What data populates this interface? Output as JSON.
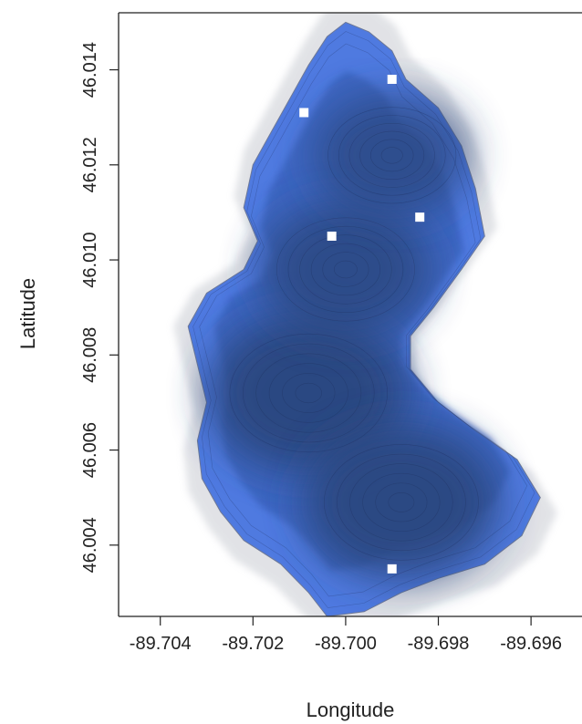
{
  "chart_data": {
    "type": "heatmap",
    "title": "",
    "xlabel": "Longitude",
    "ylabel": "Latitude",
    "xlim": [
      -89.7049,
      -89.6949
    ],
    "ylim": [
      46.0025,
      46.0152
    ],
    "xticks": [
      {
        "value": -89.704,
        "label": "-89.704"
      },
      {
        "value": -89.702,
        "label": "-89.702"
      },
      {
        "value": -89.7,
        "label": "-89.700"
      },
      {
        "value": -89.698,
        "label": "-89.698"
      },
      {
        "value": -89.696,
        "label": "-89.696"
      }
    ],
    "yticks": [
      {
        "value": 46.004,
        "label": "46.004"
      },
      {
        "value": 46.006,
        "label": "46.006"
      },
      {
        "value": 46.008,
        "label": "46.008"
      },
      {
        "value": 46.01,
        "label": "46.010"
      },
      {
        "value": 46.012,
        "label": "46.012"
      },
      {
        "value": 46.014,
        "label": "46.014"
      }
    ],
    "grid": false,
    "legend": "none",
    "lake_outline": [
      [
        -89.7,
        46.015
      ],
      [
        -89.6995,
        46.0148
      ],
      [
        -89.699,
        46.0144
      ],
      [
        -89.6987,
        46.0138
      ],
      [
        -89.698,
        46.0132
      ],
      [
        -89.6975,
        46.0124
      ],
      [
        -89.6972,
        46.0115
      ],
      [
        -89.697,
        46.0105
      ],
      [
        -89.6975,
        46.0098
      ],
      [
        -89.6981,
        46.009
      ],
      [
        -89.6986,
        46.0084
      ],
      [
        -89.6986,
        46.0077
      ],
      [
        -89.698,
        46.007
      ],
      [
        -89.6972,
        46.0064
      ],
      [
        -89.6963,
        46.0058
      ],
      [
        -89.6958,
        46.005
      ],
      [
        -89.6962,
        46.0042
      ],
      [
        -89.697,
        46.0036
      ],
      [
        -89.698,
        46.0033
      ],
      [
        -89.6988,
        46.003
      ],
      [
        -89.6996,
        46.0026
      ],
      [
        -89.7004,
        46.0025
      ],
      [
        -89.7008,
        46.003
      ],
      [
        -89.7014,
        46.0036
      ],
      [
        -89.7022,
        46.0041
      ],
      [
        -89.7027,
        46.0047
      ],
      [
        -89.7031,
        46.0054
      ],
      [
        -89.7032,
        46.0062
      ],
      [
        -89.703,
        46.007
      ],
      [
        -89.7032,
        46.0078
      ],
      [
        -89.7034,
        46.0086
      ],
      [
        -89.703,
        46.0093
      ],
      [
        -89.7022,
        46.0098
      ],
      [
        -89.7019,
        46.0104
      ],
      [
        -89.7022,
        46.0111
      ],
      [
        -89.702,
        46.012
      ],
      [
        -89.7016,
        46.0127
      ],
      [
        -89.7012,
        46.0134
      ],
      [
        -89.7008,
        46.0141
      ],
      [
        -89.7004,
        46.0147
      ]
    ],
    "depth_peaks": [
      {
        "x": -89.7008,
        "y": 46.0072,
        "value": 1.0
      },
      {
        "x": -89.6988,
        "y": 46.0049,
        "value": 0.95
      },
      {
        "x": -89.7,
        "y": 46.0098,
        "value": 0.7
      },
      {
        "x": -89.699,
        "y": 46.0122,
        "value": 0.55
      }
    ],
    "point_markers": [
      {
        "x": -89.699,
        "y": 46.0138
      },
      {
        "x": -89.7009,
        "y": 46.0131
      },
      {
        "x": -89.6984,
        "y": 46.0109
      },
      {
        "x": -89.7003,
        "y": 46.0105
      },
      {
        "x": -89.699,
        "y": 46.0035
      }
    ],
    "colors": {
      "deep": "#29467f",
      "mid": "#3d66c2",
      "shallow": "#4f7ae0",
      "edge": "#c9ccd3",
      "marker": "#ffffff",
      "axis": "#222222"
    }
  }
}
